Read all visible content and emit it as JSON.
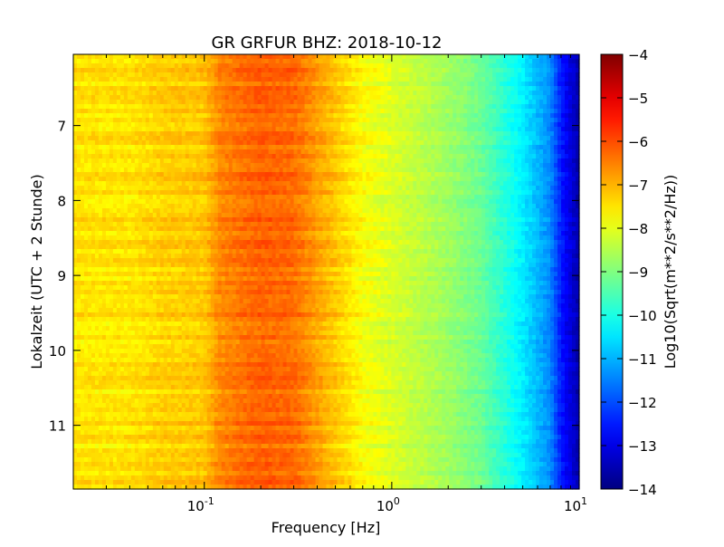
{
  "chart_data": {
    "type": "heatmap",
    "title": "GR GRFUR BHZ: 2018-10-12",
    "xlabel": "Frequency [Hz]",
    "ylabel": "Lokalzeit (UTC + 2 Stunde)",
    "x_scale": "log",
    "xlim": [
      0.02,
      10
    ],
    "x_ticks": [
      {
        "value": 0.1,
        "base": "10",
        "exp": "-1"
      },
      {
        "value": 1,
        "base": "10",
        "exp": "0"
      },
      {
        "value": 10,
        "base": "10",
        "exp": "1"
      }
    ],
    "ylim": [
      6.05,
      11.85
    ],
    "y_ticks": [
      7,
      8,
      9,
      10,
      11
    ],
    "y_inverted": true,
    "colorbar": {
      "label": "Log10(Sqrt(m**2/s**2/Hz))",
      "range": [
        -14,
        -4
      ],
      "ticks": [
        -4,
        -5,
        -6,
        -7,
        -8,
        -9,
        -10,
        -11,
        -12,
        -13,
        -14
      ],
      "colormap": "jet"
    },
    "spectrum_profile": {
      "frequency_hz": [
        0.02,
        0.04,
        0.06,
        0.1,
        0.12,
        0.15,
        0.2,
        0.3,
        0.5,
        0.7,
        1,
        2,
        3,
        5,
        7,
        8,
        10
      ],
      "level": [
        -7.5,
        -7.5,
        -7.3,
        -7.2,
        -6.6,
        -6.4,
        -6.2,
        -6.3,
        -7.2,
        -7.8,
        -8.1,
        -8.7,
        -9.2,
        -10.4,
        -11.4,
        -12.5,
        -13.6
      ]
    },
    "grid": false,
    "legend": "none"
  }
}
